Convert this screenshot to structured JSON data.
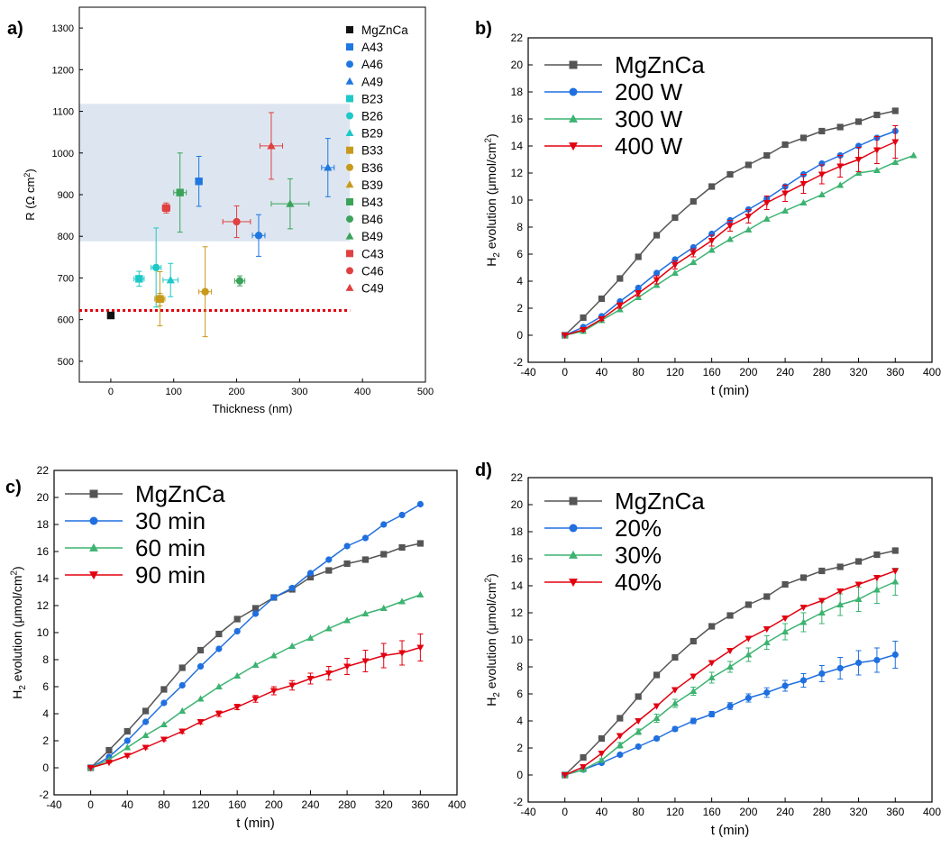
{
  "panels": {
    "a": {
      "label": "a)"
    },
    "b": {
      "label": "b)"
    },
    "c": {
      "label": "c)"
    },
    "d": {
      "label": "d)"
    }
  },
  "chart_data": [
    {
      "panel": "a",
      "type": "scatter",
      "xlabel": "Thickness (nm)",
      "ylabel_main": "R (",
      "ylabel_greek": "Ω",
      "ylabel_unit": " cm",
      "ylabel_sup": "2",
      "ylabel_close": ")",
      "xlim": [
        -50,
        500
      ],
      "ylim": [
        450,
        1350
      ],
      "x_ticks": [
        "0",
        "100",
        "200",
        "300",
        "400",
        "500"
      ],
      "y_ticks": [
        "500",
        "600",
        "700",
        "800",
        "900",
        "1000",
        "1100",
        "1200",
        "1300"
      ],
      "shaded_band": {
        "y": [
          788,
          1118
        ],
        "color": "#dde6f0"
      },
      "reference_line": {
        "y": 622,
        "color": "#e3000f",
        "style": "dotted"
      },
      "legend_position": "right",
      "points": [
        {
          "name": "MgZnCa",
          "x": 0,
          "y": 610,
          "xerr": 0,
          "yerr": 5,
          "color": "#111111",
          "marker": "square"
        },
        {
          "name": "A43",
          "x": 140,
          "y": 932,
          "xerr": 0,
          "yerr": 60,
          "color": "#1f77e0",
          "marker": "square"
        },
        {
          "name": "A46",
          "x": 235,
          "y": 802,
          "xerr": 10,
          "yerr": 50,
          "color": "#1f77e0",
          "marker": "circle"
        },
        {
          "name": "A49",
          "x": 345,
          "y": 965,
          "xerr": 10,
          "yerr": 70,
          "color": "#1f77e0",
          "marker": "triangle-up"
        },
        {
          "name": "B23",
          "x": 45,
          "y": 698,
          "xerr": 8,
          "yerr": 18,
          "color": "#1fc8c8",
          "marker": "square"
        },
        {
          "name": "B26",
          "x": 72,
          "y": 725,
          "xerr": 8,
          "yerr": 95,
          "color": "#1fc8c8",
          "marker": "circle"
        },
        {
          "name": "B29",
          "x": 95,
          "y": 695,
          "xerr": 12,
          "yerr": 40,
          "color": "#1fc8c8",
          "marker": "triangle-up"
        },
        {
          "name": "B33",
          "x": 78,
          "y": 650,
          "xerr": 8,
          "yerr": 65,
          "color": "#c89a1a",
          "marker": "square"
        },
        {
          "name": "B36",
          "x": 150,
          "y": 667,
          "xerr": 10,
          "yerr": 108,
          "color": "#c89a1a",
          "marker": "circle"
        },
        {
          "name": "B39",
          "x": 78,
          "y": 648,
          "xerr": 6,
          "yerr": 15,
          "color": "#c89a1a",
          "marker": "triangle-up"
        },
        {
          "name": "B43",
          "x": 110,
          "y": 905,
          "xerr": 10,
          "yerr": 95,
          "color": "#3aa35a",
          "marker": "square"
        },
        {
          "name": "B46",
          "x": 205,
          "y": 693,
          "xerr": 8,
          "yerr": 12,
          "color": "#3aa35a",
          "marker": "circle"
        },
        {
          "name": "B49",
          "x": 285,
          "y": 878,
          "xerr": 30,
          "yerr": 60,
          "color": "#3aa35a",
          "marker": "triangle-up"
        },
        {
          "name": "C43",
          "x": 88,
          "y": 868,
          "xerr": 6,
          "yerr": 12,
          "color": "#e04040",
          "marker": "square"
        },
        {
          "name": "C46",
          "x": 200,
          "y": 835,
          "xerr": 22,
          "yerr": 38,
          "color": "#e04040",
          "marker": "circle"
        },
        {
          "name": "C49",
          "x": 255,
          "y": 1017,
          "xerr": 18,
          "yerr": 80,
          "color": "#e04040",
          "marker": "triangle-up"
        }
      ]
    },
    {
      "panel": "b",
      "type": "line",
      "xlabel": "t (min)",
      "ylabel_pre": "H",
      "ylabel_sub": "2",
      "ylabel_mid": " evolution (",
      "ylabel_mu": "μ",
      "ylabel_unit": "mol/cm",
      "ylabel_sup": "2",
      "ylabel_close": ")",
      "xlim": [
        -40,
        400
      ],
      "ylim": [
        -2,
        22
      ],
      "x_ticks": [
        "-40",
        "0",
        "40",
        "80",
        "120",
        "160",
        "200",
        "240",
        "280",
        "320",
        "360",
        "400"
      ],
      "y_ticks": [
        "-2",
        "0",
        "2",
        "4",
        "6",
        "8",
        "10",
        "12",
        "14",
        "16",
        "18",
        "20",
        "22"
      ],
      "legend_position": "top-left",
      "series": [
        {
          "name": "MgZnCa",
          "color": "#555555",
          "marker": "square",
          "x": [
            0,
            20,
            40,
            60,
            80,
            100,
            120,
            140,
            160,
            180,
            200,
            220,
            240,
            260,
            280,
            300,
            320,
            340,
            360
          ],
          "y": [
            0,
            1.3,
            2.7,
            4.2,
            5.8,
            7.4,
            8.7,
            9.9,
            11.0,
            11.9,
            12.6,
            13.3,
            14.1,
            14.6,
            15.1,
            15.4,
            15.8,
            16.3,
            16.6
          ],
          "err": []
        },
        {
          "name": "200 W",
          "color": "#1f6fe0",
          "marker": "circle",
          "x": [
            0,
            20,
            40,
            60,
            80,
            100,
            120,
            140,
            160,
            180,
            200,
            220,
            240,
            260,
            280,
            300,
            320,
            340,
            360
          ],
          "y": [
            0,
            0.6,
            1.4,
            2.5,
            3.5,
            4.6,
            5.6,
            6.5,
            7.5,
            8.5,
            9.3,
            10.1,
            11.0,
            11.9,
            12.7,
            13.3,
            14.0,
            14.6,
            15.1
          ],
          "err": []
        },
        {
          "name": "300 W",
          "color": "#3cb371",
          "marker": "triangle-up",
          "x": [
            0,
            20,
            40,
            60,
            80,
            100,
            120,
            140,
            160,
            180,
            200,
            220,
            240,
            260,
            280,
            300,
            320,
            340,
            360,
            380
          ],
          "y": [
            0,
            0.3,
            1.1,
            1.9,
            2.8,
            3.7,
            4.6,
            5.4,
            6.3,
            7.1,
            7.8,
            8.6,
            9.2,
            9.8,
            10.4,
            11.1,
            12.0,
            12.2,
            12.8,
            13.3
          ],
          "err": []
        },
        {
          "name": "400 W",
          "color": "#e3000f",
          "marker": "triangle-down",
          "x": [
            0,
            20,
            40,
            60,
            80,
            100,
            120,
            140,
            160,
            180,
            200,
            220,
            240,
            260,
            280,
            300,
            320,
            340,
            360
          ],
          "y": [
            0,
            0.4,
            1.2,
            2.2,
            3.1,
            4.1,
            5.2,
            6.1,
            7.0,
            8.1,
            8.8,
            9.8,
            10.5,
            11.2,
            11.9,
            12.5,
            13.0,
            13.7,
            14.3
          ],
          "err": [
            0,
            0.1,
            0.1,
            0.2,
            0.2,
            0.3,
            0.3,
            0.3,
            0.4,
            0.4,
            0.5,
            0.5,
            0.6,
            0.7,
            0.7,
            0.8,
            0.9,
            1.0,
            1.2
          ]
        }
      ]
    },
    {
      "panel": "c",
      "type": "line",
      "xlabel": "t (min)",
      "ylabel_pre": "H",
      "ylabel_sub": "2",
      "ylabel_mid": " evolution (",
      "ylabel_mu": "μ",
      "ylabel_unit": "mol/cm",
      "ylabel_sup": "2",
      "ylabel_close": ")",
      "xlim": [
        -40,
        400
      ],
      "ylim": [
        -2,
        22
      ],
      "x_ticks": [
        "-40",
        "0",
        "40",
        "80",
        "120",
        "160",
        "200",
        "240",
        "280",
        "320",
        "360",
        "400"
      ],
      "y_ticks": [
        "-2",
        "0",
        "2",
        "4",
        "6",
        "8",
        "10",
        "12",
        "14",
        "16",
        "18",
        "20",
        "22"
      ],
      "legend_position": "top-left",
      "series": [
        {
          "name": "MgZnCa",
          "color": "#555555",
          "marker": "square",
          "x": [
            0,
            20,
            40,
            60,
            80,
            100,
            120,
            140,
            160,
            180,
            200,
            220,
            240,
            260,
            280,
            300,
            320,
            340,
            360
          ],
          "y": [
            0,
            1.3,
            2.7,
            4.2,
            5.8,
            7.4,
            8.7,
            9.9,
            11.0,
            11.8,
            12.6,
            13.2,
            14.1,
            14.6,
            15.1,
            15.4,
            15.8,
            16.3,
            16.6
          ],
          "err": [
            0,
            0.1,
            0.1,
            0.1,
            0.1,
            0.1,
            0.1,
            0.1,
            0.1,
            0.1,
            0.1,
            0.1,
            0.1,
            0.1,
            0.1,
            0.1,
            0.1,
            0.1,
            0.2
          ]
        },
        {
          "name": "30 min",
          "color": "#1f6fe0",
          "marker": "circle",
          "x": [
            0,
            20,
            40,
            60,
            80,
            100,
            120,
            140,
            160,
            180,
            200,
            220,
            240,
            260,
            280,
            300,
            320,
            340,
            360
          ],
          "y": [
            0,
            0.8,
            2.0,
            3.4,
            4.8,
            6.1,
            7.5,
            8.8,
            10.1,
            11.4,
            12.6,
            13.3,
            14.4,
            15.4,
            16.4,
            17.0,
            18.0,
            18.7,
            19.5
          ],
          "err": []
        },
        {
          "name": "60 min",
          "color": "#3cb371",
          "marker": "triangle-up",
          "x": [
            0,
            20,
            40,
            60,
            80,
            100,
            120,
            140,
            160,
            180,
            200,
            220,
            240,
            260,
            280,
            300,
            320,
            340,
            360
          ],
          "y": [
            0,
            0.6,
            1.5,
            2.4,
            3.2,
            4.2,
            5.1,
            6.0,
            6.8,
            7.6,
            8.3,
            9.0,
            9.6,
            10.3,
            10.9,
            11.4,
            11.8,
            12.3,
            12.8
          ],
          "err": []
        },
        {
          "name": "90 min",
          "color": "#e3000f",
          "marker": "triangle-down",
          "x": [
            0,
            20,
            40,
            60,
            80,
            100,
            120,
            140,
            160,
            180,
            200,
            220,
            240,
            260,
            280,
            300,
            320,
            340,
            360
          ],
          "y": [
            0,
            0.4,
            0.9,
            1.5,
            2.1,
            2.7,
            3.4,
            4.0,
            4.5,
            5.1,
            5.7,
            6.1,
            6.6,
            7.0,
            7.5,
            7.9,
            8.3,
            8.5,
            8.9
          ],
          "err": [
            0,
            0.05,
            0.1,
            0.1,
            0.1,
            0.15,
            0.15,
            0.2,
            0.2,
            0.25,
            0.3,
            0.35,
            0.4,
            0.5,
            0.6,
            0.8,
            0.9,
            0.9,
            1.0
          ]
        }
      ]
    },
    {
      "panel": "d",
      "type": "line",
      "xlabel": "t (min)",
      "ylabel_pre": "H",
      "ylabel_sub": "2",
      "ylabel_mid": " evolution (",
      "ylabel_mu": "μ",
      "ylabel_unit": "mol/cm",
      "ylabel_sup": "2",
      "ylabel_close": ")",
      "xlim": [
        -40,
        400
      ],
      "ylim": [
        -2,
        22
      ],
      "x_ticks": [
        "-40",
        "0",
        "40",
        "80",
        "120",
        "160",
        "200",
        "240",
        "280",
        "320",
        "360",
        "400"
      ],
      "y_ticks": [
        "-2",
        "0",
        "2",
        "4",
        "6",
        "8",
        "10",
        "12",
        "14",
        "16",
        "18",
        "20",
        "22"
      ],
      "legend_position": "top-left",
      "series": [
        {
          "name": "MgZnCa",
          "color": "#555555",
          "marker": "square",
          "x": [
            0,
            20,
            40,
            60,
            80,
            100,
            120,
            140,
            160,
            180,
            200,
            220,
            240,
            260,
            280,
            300,
            320,
            340,
            360
          ],
          "y": [
            0,
            1.3,
            2.7,
            4.2,
            5.8,
            7.4,
            8.7,
            9.9,
            11.0,
            11.8,
            12.6,
            13.2,
            14.1,
            14.6,
            15.1,
            15.4,
            15.8,
            16.3,
            16.6
          ],
          "err": [
            0,
            0.1,
            0.1,
            0.1,
            0.1,
            0.1,
            0.1,
            0.1,
            0.1,
            0.1,
            0.1,
            0.1,
            0.1,
            0.1,
            0.1,
            0.1,
            0.1,
            0.1,
            0.2
          ]
        },
        {
          "name": "20%",
          "color": "#1f6fe0",
          "marker": "circle",
          "x": [
            0,
            20,
            40,
            60,
            80,
            100,
            120,
            140,
            160,
            180,
            200,
            220,
            240,
            260,
            280,
            300,
            320,
            340,
            360
          ],
          "y": [
            0,
            0.4,
            0.9,
            1.5,
            2.1,
            2.7,
            3.4,
            4.0,
            4.5,
            5.1,
            5.7,
            6.1,
            6.6,
            7.0,
            7.5,
            7.9,
            8.3,
            8.5,
            8.9
          ],
          "err": [
            0,
            0.05,
            0.1,
            0.1,
            0.1,
            0.15,
            0.15,
            0.2,
            0.2,
            0.25,
            0.3,
            0.35,
            0.4,
            0.5,
            0.6,
            0.8,
            0.9,
            0.9,
            1.0
          ]
        },
        {
          "name": "30%",
          "color": "#3cb371",
          "marker": "triangle-up",
          "x": [
            0,
            20,
            40,
            60,
            80,
            100,
            120,
            140,
            160,
            180,
            200,
            220,
            240,
            260,
            280,
            300,
            320,
            340,
            360
          ],
          "y": [
            0,
            0.4,
            1.1,
            2.2,
            3.2,
            4.2,
            5.3,
            6.2,
            7.2,
            8.0,
            8.9,
            9.8,
            10.6,
            11.3,
            12.0,
            12.6,
            13.0,
            13.7,
            14.3
          ],
          "err": [
            0,
            0.1,
            0.1,
            0.2,
            0.2,
            0.3,
            0.3,
            0.3,
            0.4,
            0.4,
            0.5,
            0.5,
            0.6,
            0.7,
            0.8,
            0.8,
            0.9,
            1.0,
            1.0
          ]
        },
        {
          "name": "40%",
          "color": "#e3000f",
          "marker": "triangle-down",
          "x": [
            0,
            20,
            40,
            60,
            80,
            100,
            120,
            140,
            160,
            180,
            200,
            220,
            240,
            260,
            280,
            300,
            320,
            340,
            360
          ],
          "y": [
            0,
            0.6,
            1.6,
            2.9,
            4.0,
            5.1,
            6.3,
            7.3,
            8.3,
            9.2,
            10.1,
            10.8,
            11.6,
            12.4,
            12.9,
            13.6,
            14.1,
            14.6,
            15.1
          ],
          "err": []
        }
      ]
    }
  ]
}
